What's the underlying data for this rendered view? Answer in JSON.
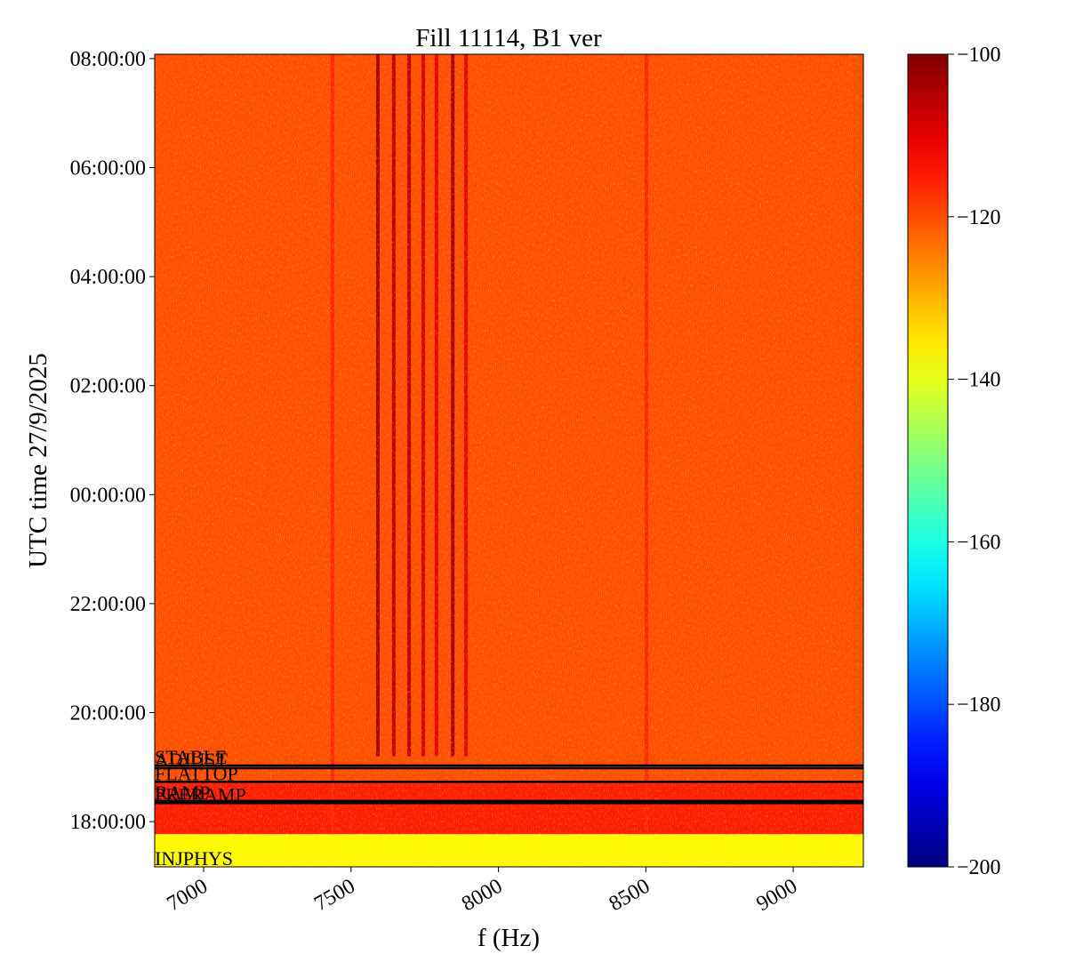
{
  "chart_data": {
    "type": "spectrogram",
    "title": "Fill 11114, B1 ver",
    "xlabel": "f (Hz)",
    "ylabel": "UTC time 27/9/2025",
    "xlim": [
      6834,
      9238
    ],
    "xticks": [
      7000,
      7500,
      8000,
      8500,
      9000
    ],
    "ylim": [
      -6.83,
      8.08
    ],
    "yticks": [
      {
        "value": -6,
        "label": "18:00:00"
      },
      {
        "value": -4,
        "label": "20:00:00"
      },
      {
        "value": -2,
        "label": "22:00:00"
      },
      {
        "value": 0,
        "label": "00:00:00"
      },
      {
        "value": 2,
        "label": "02:00:00"
      },
      {
        "value": 4,
        "label": "04:00:00"
      },
      {
        "value": 6,
        "label": "06:00:00"
      },
      {
        "value": 8,
        "label": "08:00:00"
      }
    ],
    "colormap": "jet",
    "clim": [
      -200,
      -100
    ],
    "cticks": [
      {
        "value": -100,
        "label": "−100"
      },
      {
        "value": -120,
        "label": "−120"
      },
      {
        "value": -140,
        "label": "−140"
      },
      {
        "value": -160,
        "label": "−160"
      },
      {
        "value": -180,
        "label": "−180"
      },
      {
        "value": -200,
        "label": "−200"
      }
    ],
    "regions": [
      {
        "t0": -6.83,
        "t1": -6.23,
        "level": -137
      },
      {
        "t0": -6.23,
        "t1": -5.27,
        "level": -115
      },
      {
        "t0": -5.27,
        "t1": 8.08,
        "level": -120
      }
    ],
    "lines": [
      {
        "freq": 7437,
        "t0": -6.23,
        "t1": 8.08,
        "level": -116
      },
      {
        "freq": 7591,
        "t0": -4.8,
        "t1": 8.08,
        "level": -104
      },
      {
        "freq": 7645,
        "t0": -4.8,
        "t1": 8.08,
        "level": -106
      },
      {
        "freq": 7697,
        "t0": -4.8,
        "t1": 8.08,
        "level": -106
      },
      {
        "freq": 7745,
        "t0": -4.8,
        "t1": 8.08,
        "level": -108
      },
      {
        "freq": 7790,
        "t0": -4.8,
        "t1": 8.08,
        "level": -110
      },
      {
        "freq": 7845,
        "t0": -4.8,
        "t1": 8.08,
        "level": -104
      },
      {
        "freq": 7890,
        "t0": -4.8,
        "t1": 8.08,
        "level": -110
      },
      {
        "freq": 8502,
        "t0": -6.23,
        "t1": 8.08,
        "level": -116
      }
    ],
    "annotations": [
      {
        "label": "STABLE",
        "time": -4.97
      },
      {
        "label": "ADJUST",
        "time": -5.02
      },
      {
        "label": "FLATTOP",
        "time": -5.27
      },
      {
        "label": "RAMP",
        "time": -5.62
      },
      {
        "label": "PRERAMP",
        "time": -5.66
      },
      {
        "label": "INJPHYS",
        "time": -6.83
      }
    ]
  }
}
